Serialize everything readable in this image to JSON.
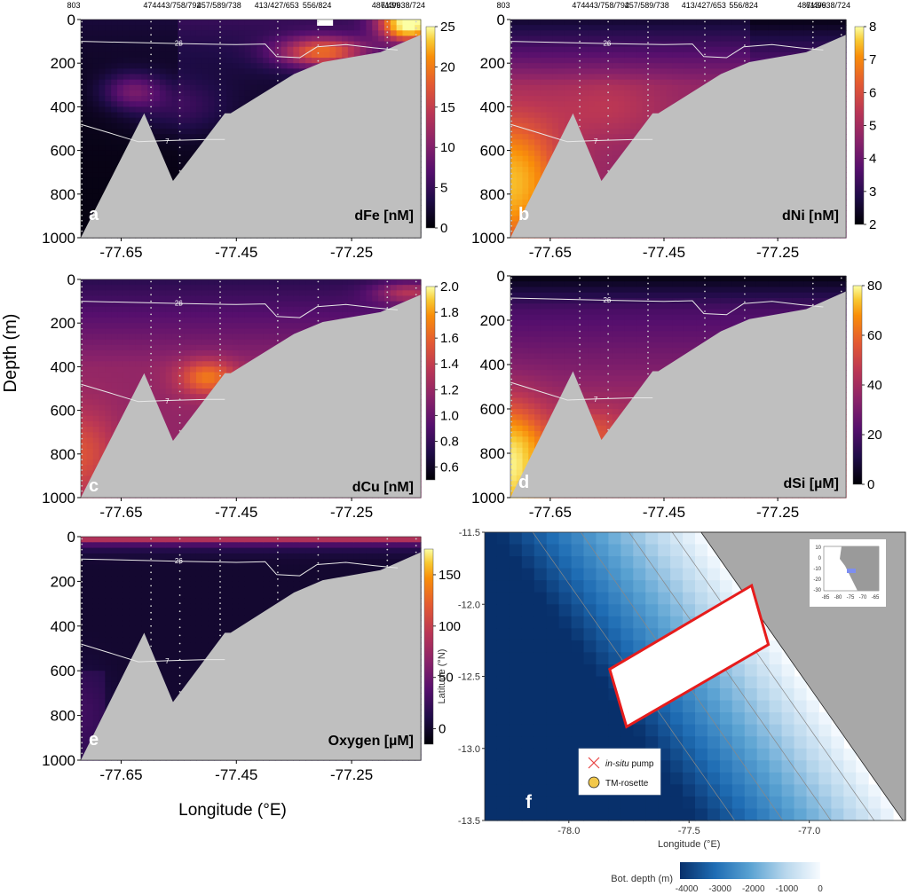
{
  "figure": {
    "station_labels": [
      "803",
      "474",
      "443/758/792",
      "457/589/738",
      "413/427/653",
      "556/824",
      "487/499",
      "613/638/724"
    ],
    "y_axis_label": "Depth (m)",
    "x_axis_label": "Longitude (°E)"
  },
  "chart_data": [
    {
      "type": "heatmap",
      "panel": "a",
      "parameter": "dFe [nM]",
      "colorbar_ticks": [
        "0",
        "5",
        "10",
        "15",
        "20",
        "25"
      ],
      "colorbar_range": [
        0,
        25
      ],
      "x_ticks": [
        "-77.65",
        "-77.45",
        "-77.25"
      ],
      "y_ticks": [
        "0",
        "200",
        "400",
        "600",
        "800",
        "1000"
      ],
      "xlim": [
        -77.72,
        -77.13
      ],
      "ylim": [
        1000,
        0
      ],
      "contour_labels": [
        "26",
        "7"
      ],
      "station_longitudes": [
        -77.72,
        -77.6,
        -77.55,
        -77.48,
        -77.38,
        -77.31,
        -77.19,
        -77.14
      ],
      "value_summary": "elevated near the shelf and upper slope (up to ~25 nM near -77.15 at the surface), low offshore"
    },
    {
      "type": "heatmap",
      "panel": "b",
      "parameter": "dNi [nM]",
      "colorbar_ticks": [
        "2",
        "3",
        "4",
        "5",
        "6",
        "7",
        "8"
      ],
      "colorbar_range": [
        2,
        8
      ],
      "x_ticks": [
        "-77.65",
        "-77.45",
        "-77.25"
      ],
      "y_ticks": [
        "0",
        "200",
        "400",
        "600",
        "800",
        "1000"
      ],
      "xlim": [
        -77.72,
        -77.13
      ],
      "ylim": [
        1000,
        0
      ],
      "contour_labels": [
        "26",
        "7"
      ]
    },
    {
      "type": "heatmap",
      "panel": "c",
      "parameter": "dCu [nM]",
      "colorbar_ticks": [
        "0.6",
        "0.8",
        "1.0",
        "1.2",
        "1.4",
        "1.6",
        "1.8",
        "2.0"
      ],
      "colorbar_range": [
        0.5,
        2.0
      ],
      "x_ticks": [
        "-77.65",
        "-77.45",
        "-77.25"
      ],
      "y_ticks": [
        "0",
        "200",
        "400",
        "600",
        "800",
        "1000"
      ],
      "xlim": [
        -77.72,
        -77.13
      ],
      "ylim": [
        1000,
        0
      ],
      "contour_labels": [
        "26",
        "7"
      ]
    },
    {
      "type": "heatmap",
      "panel": "d",
      "parameter": "dSi [µM]",
      "colorbar_ticks": [
        "0",
        "20",
        "40",
        "60",
        "80"
      ],
      "colorbar_range": [
        0,
        80
      ],
      "x_ticks": [
        "-77.65",
        "-77.45",
        "-77.25"
      ],
      "y_ticks": [
        "0",
        "200",
        "400",
        "600",
        "800",
        "1000"
      ],
      "xlim": [
        -77.72,
        -77.13
      ],
      "ylim": [
        1000,
        0
      ],
      "contour_labels": [
        "26",
        "7"
      ]
    },
    {
      "type": "heatmap",
      "panel": "e",
      "parameter": "Oxygen [µM]",
      "colorbar_ticks": [
        "0",
        "50",
        "100",
        "150"
      ],
      "colorbar_range": [
        -15,
        175
      ],
      "x_ticks": [
        "-77.65",
        "-77.45",
        "-77.25"
      ],
      "y_ticks": [
        "0",
        "200",
        "400",
        "600",
        "800",
        "1000"
      ],
      "xlim": [
        -77.72,
        -77.13
      ],
      "ylim": [
        1000,
        0
      ],
      "contour_labels": [
        "26",
        "7"
      ]
    },
    {
      "type": "map",
      "panel": "f",
      "x_label": "Longitude (°E)",
      "y_label": "Latitude (°N)",
      "x_ticks": [
        "-78.0",
        "-77.5",
        "-77.0"
      ],
      "y_ticks": [
        "-11.5",
        "-12.0",
        "-12.5",
        "-13.0",
        "-13.5"
      ],
      "xlim": [
        -78.35,
        -76.6
      ],
      "ylim": [
        -13.5,
        -11.5
      ],
      "legend": [
        {
          "label_italic": "in-situ",
          "label": "pump",
          "marker": "red x"
        },
        {
          "label": "TM-rosette",
          "marker": "yellow circle"
        }
      ],
      "colorbar_title": "Bot. depth (m)",
      "colorbar_ticks": [
        "-4000",
        "-3000",
        "-2000",
        "-1000",
        "0"
      ],
      "colorbar_range": [
        -4200,
        0
      ],
      "inset_x_ticks": [
        "-85",
        "-80",
        "-75",
        "-70",
        "-65"
      ],
      "inset_y_ticks": [
        "10",
        "0",
        "-10",
        "-20",
        "-30"
      ]
    }
  ],
  "colors": {
    "land_gray": "#bfbfbf",
    "contour": "#e8e8e8",
    "stations": "#cfcfcf",
    "box": "#e61c1c",
    "map_land": "#a8a8a8"
  }
}
